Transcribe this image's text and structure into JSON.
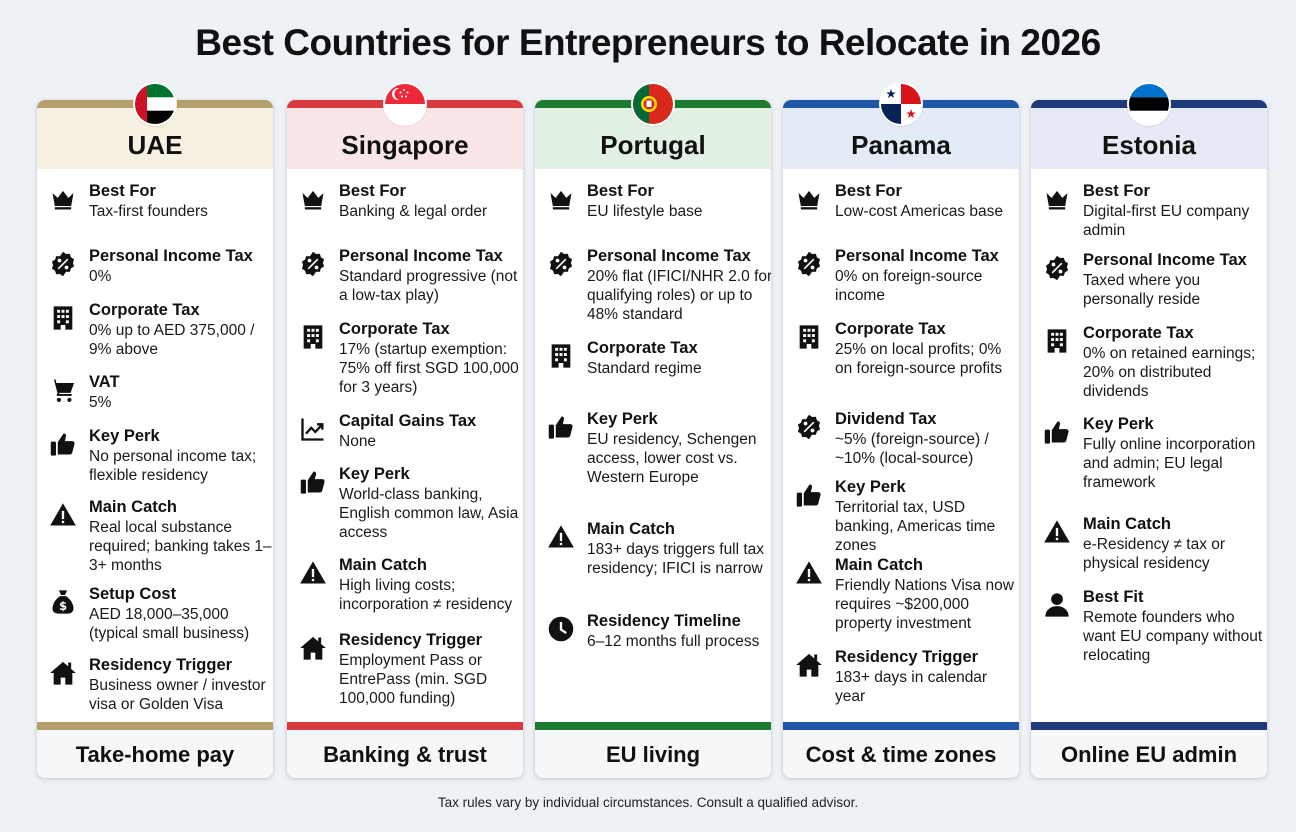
{
  "title": "Best Countries for Entrepreneurs to Relocate in 2026",
  "footnote": "Tax rules vary by individual circumstances. Consult a qualified advisor.",
  "cards": [
    {
      "name": "UAE",
      "flag": "uae-flag",
      "accent": "#b59f6a",
      "header_bg": "#f6f1e2",
      "footer": "Take-home pay",
      "items": [
        {
          "icon": "crown-icon",
          "label": "Best For",
          "value": "Tax-first founders"
        },
        {
          "icon": "percent-badge-icon",
          "label": "Personal Income Tax",
          "value": "0%"
        },
        {
          "icon": "building-icon",
          "label": "Corporate Tax",
          "value": "0% up to AED 375,000 / 9% above"
        },
        {
          "icon": "cart-icon",
          "label": "VAT",
          "value": "5%"
        },
        {
          "icon": "thumbs-up-icon",
          "label": "Key Perk",
          "value": "No personal income tax; flexible residency"
        },
        {
          "icon": "warning-icon",
          "label": "Main Catch",
          "value": "Real local substance required; banking takes 1–3+ months"
        },
        {
          "icon": "money-bag-icon",
          "label": "Setup Cost",
          "value": "AED 18,000–35,000 (typical small business)"
        },
        {
          "icon": "home-icon",
          "label": "Residency Trigger",
          "value": "Business owner / investor visa or Golden Visa"
        }
      ]
    },
    {
      "name": "Singapore",
      "flag": "singapore-flag",
      "accent": "#d93a40",
      "header_bg": "#fae6e7",
      "footer": "Banking & trust",
      "items": [
        {
          "icon": "crown-icon",
          "label": "Best For",
          "value": "Banking & legal order"
        },
        {
          "icon": "percent-badge-icon",
          "label": "Personal Income Tax",
          "value": "Standard progressive (not a low-tax play)"
        },
        {
          "icon": "building-icon",
          "label": "Corporate Tax",
          "value": "17% (startup exemption: 75% off first SGD 100,000 for 3 years)"
        },
        {
          "icon": "trend-chart-icon",
          "label": "Capital Gains Tax",
          "value": "None"
        },
        {
          "icon": "thumbs-up-icon",
          "label": "Key Perk",
          "value": "World-class banking, English common law, Asia access"
        },
        {
          "icon": "warning-icon",
          "label": "Main Catch",
          "value": "High living costs; incorporation ≠ residency"
        },
        {
          "icon": "home-icon",
          "label": "Residency Trigger",
          "value": "Employment Pass or EntrePass (min. SGD 100,000 funding)"
        }
      ]
    },
    {
      "name": "Portugal",
      "flag": "portugal-flag",
      "accent": "#1e7b32",
      "header_bg": "#e3f1e4",
      "footer": "EU living",
      "items": [
        {
          "icon": "crown-icon",
          "label": "Best For",
          "value": "EU lifestyle base"
        },
        {
          "icon": "percent-badge-icon",
          "label": "Personal Income Tax",
          "value": "20% flat (IFICI/NHR 2.0 for qualifying roles) or up to 48% standard"
        },
        {
          "icon": "building-icon",
          "label": "Corporate Tax",
          "value": "Standard regime"
        },
        {
          "icon": "thumbs-up-icon",
          "label": "Key Perk",
          "value": "EU residency, Schengen access, lower cost vs. Western Europe"
        },
        {
          "icon": "warning-icon",
          "label": "Main Catch",
          "value": "183+ days triggers full tax residency; IFICI is narrow"
        },
        {
          "icon": "clock-icon",
          "label": "Residency Timeline",
          "value": "6–12 months full process"
        }
      ]
    },
    {
      "name": "Panama",
      "flag": "panama-flag",
      "accent": "#1f56a8",
      "header_bg": "#e3ebf6",
      "footer": "Cost & time zones",
      "items": [
        {
          "icon": "crown-icon",
          "label": "Best For",
          "value": "Low-cost Americas base"
        },
        {
          "icon": "percent-badge-icon",
          "label": "Personal Income Tax",
          "value": "0% on foreign-source income"
        },
        {
          "icon": "building-icon",
          "label": "Corporate Tax",
          "value": "25% on local profits; 0% on foreign-source profits"
        },
        {
          "icon": "percent-badge-icon",
          "label": "Dividend Tax",
          "value": "~5% (foreign-source) / ~10% (local-source)"
        },
        {
          "icon": "thumbs-up-icon",
          "label": "Key Perk",
          "value": "Territorial tax, USD banking, Americas time zones"
        },
        {
          "icon": "warning-icon",
          "label": "Main Catch",
          "value": "Friendly Nations Visa now requires ~$200,000 property investment"
        },
        {
          "icon": "home-icon",
          "label": "Residency Trigger",
          "value": "183+ days in calendar year"
        }
      ]
    },
    {
      "name": "Estonia",
      "flag": "estonia-flag",
      "accent": "#1f3a7a",
      "header_bg": "#e6eaf4",
      "footer": "Online EU admin",
      "items": [
        {
          "icon": "crown-icon",
          "label": "Best For",
          "value": "Digital-first EU company admin"
        },
        {
          "icon": "percent-badge-icon",
          "label": "Personal Income Tax",
          "value": "Taxed where you personally reside"
        },
        {
          "icon": "building-icon",
          "label": "Corporate Tax",
          "value": "0% on retained earnings; 20% on distributed dividends"
        },
        {
          "icon": "thumbs-up-icon",
          "label": "Key Perk",
          "value": "Fully online incorporation and admin; EU legal framework"
        },
        {
          "icon": "warning-icon",
          "label": "Main Catch",
          "value": "e-Residency ≠ tax or physical residency"
        },
        {
          "icon": "person-icon",
          "label": "Best Fit",
          "value": "Remote founders who want EU company without relocating"
        }
      ]
    }
  ]
}
